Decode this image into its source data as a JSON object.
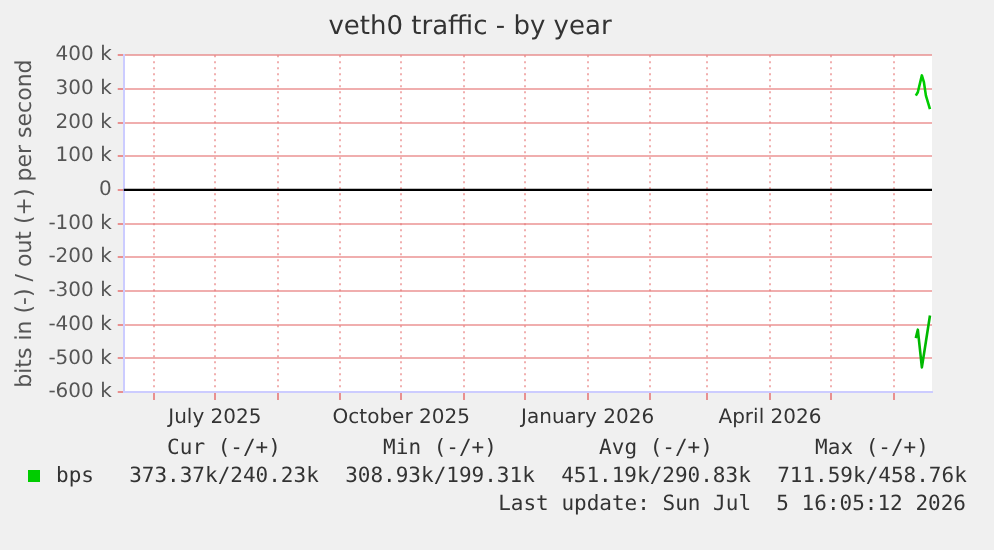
{
  "chart_data": {
    "type": "line",
    "title": "veth0 traffic - by year",
    "ylabel": "bits in (-) / out (+) per second",
    "xlim": [
      "2025-05-17",
      "2026-06-20"
    ],
    "xticks": [
      {
        "value": "2025-06-01",
        "label": null
      },
      {
        "value": "2025-07-01",
        "label": "July 2025"
      },
      {
        "value": "2025-08-01",
        "label": null
      },
      {
        "value": "2025-09-01",
        "label": null
      },
      {
        "value": "2025-10-01",
        "label": "October 2025"
      },
      {
        "value": "2025-11-01",
        "label": null
      },
      {
        "value": "2025-12-01",
        "label": null
      },
      {
        "value": "2026-01-01",
        "label": "January 2026"
      },
      {
        "value": "2026-02-01",
        "label": null
      },
      {
        "value": "2026-03-01",
        "label": null
      },
      {
        "value": "2026-04-01",
        "label": "April 2026"
      },
      {
        "value": "2026-05-01",
        "label": null
      },
      {
        "value": "2026-06-01",
        "label": null
      }
    ],
    "ylim": [
      -600000,
      400000
    ],
    "yticks": [
      {
        "value": -600000,
        "label": "-600 k"
      },
      {
        "value": -500000,
        "label": "-500 k"
      },
      {
        "value": -400000,
        "label": "-400 k"
      },
      {
        "value": -300000,
        "label": "-300 k"
      },
      {
        "value": -200000,
        "label": "-200 k"
      },
      {
        "value": -100000,
        "label": "-100 k"
      },
      {
        "value": 0,
        "label": "0"
      },
      {
        "value": 100000,
        "label": "100 k"
      },
      {
        "value": 200000,
        "label": "200 k"
      },
      {
        "value": 300000,
        "label": "300 k"
      },
      {
        "value": 400000,
        "label": "400 k"
      }
    ],
    "grid": true,
    "legend": "bottom left",
    "marker": "none",
    "line_style": "solid",
    "ref_lines": [
      {
        "axis": "y",
        "value": 0,
        "label": null,
        "color": "#000000"
      }
    ],
    "series": [
      {
        "name": "bps",
        "color": "#00cc00",
        "x": [
          "2026-06-12",
          "2026-06-13",
          "2026-06-15",
          "2026-06-16",
          "2026-06-17",
          "2026-06-19"
        ],
        "values": [
          280000,
          290000,
          340000,
          320000,
          280000,
          240000
        ]
      },
      {
        "color": "#00b800",
        "x": [
          "2026-06-12",
          "2026-06-13",
          "2026-06-15",
          "2026-06-17",
          "2026-06-19"
        ],
        "values": [
          -440000,
          -415000,
          -527000,
          -450000,
          -373000
        ]
      }
    ],
    "annotations": [
      "Cur (-/+)",
      "Min (-/+)",
      "Avg (-/+)",
      "Max (-/+)",
      "373.37k/240.23k",
      "308.93k/199.31k",
      "451.19k/290.83k",
      "711.59k/458.76k",
      "Last update: Sun Jul  5 16:05:12 2026"
    ]
  }
}
